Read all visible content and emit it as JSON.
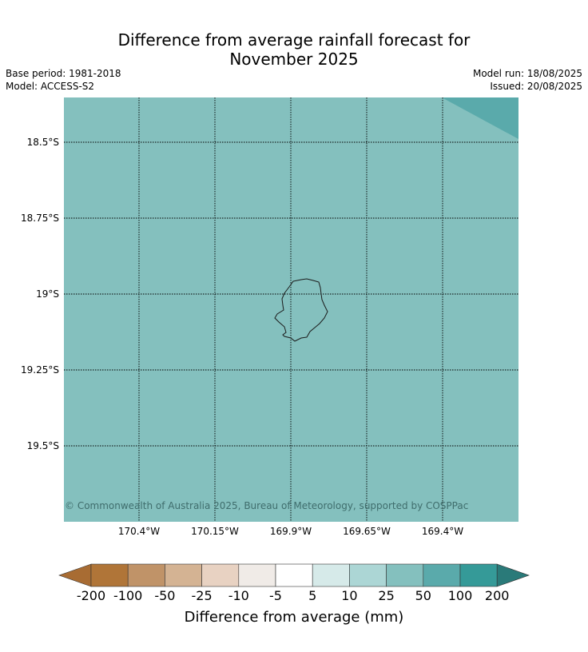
{
  "title_line1": "Difference from average rainfall forecast for",
  "title_line2": "November 2025",
  "base_period": "Base period: 1981-2018",
  "model": "Model: ACCESS-S2",
  "model_run": "Model run: 18/08/2025",
  "issued": "Issued: 20/08/2025",
  "copyright": "© Commonwealth of Australia 2025, Bureau of Meteorology, supported by COSPPac",
  "map": {
    "background_color": "#84c0be",
    "corner_color": "#5aaaab",
    "latitude_labels": [
      "18.5°S",
      "18.75°S",
      "19°S",
      "19.25°S",
      "19.5°S"
    ],
    "longitude_labels": [
      "170.4°W",
      "170.15°W",
      "169.9°W",
      "169.65°W",
      "169.4°W"
    ],
    "island": "Niue"
  },
  "colorbar": {
    "title": "Difference from average (mm)",
    "tick_labels": [
      "-200",
      "-100",
      "-50",
      "-25",
      "-10",
      "-5",
      "5",
      "10",
      "25",
      "50",
      "100",
      "200"
    ],
    "colors": [
      "#a86c33",
      "#b07538",
      "#c09368",
      "#d4b393",
      "#e8d2c2",
      "#f0ebe7",
      "#ffffff",
      "#d6eae9",
      "#acd6d5",
      "#84c0be",
      "#5aaaab",
      "#359a98",
      "#2a7a79"
    ]
  }
}
